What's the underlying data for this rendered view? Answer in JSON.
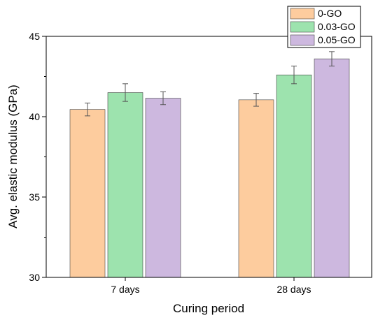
{
  "chart_data": {
    "type": "bar",
    "categories": [
      "7 days",
      "28 days"
    ],
    "series": [
      {
        "name": "0-GO",
        "values": [
          40.45,
          41.05
        ],
        "errors": [
          0.4,
          0.4
        ],
        "color": "#FDCC9E"
      },
      {
        "name": "0.03-GO",
        "values": [
          41.5,
          42.6
        ],
        "errors": [
          0.55,
          0.55
        ],
        "color": "#9DE3AE"
      },
      {
        "name": "0.05-GO",
        "values": [
          41.15,
          43.6
        ],
        "errors": [
          0.4,
          0.45
        ],
        "color": "#CDB8DF"
      }
    ],
    "xlabel": "Curing period",
    "ylabel": "Avg. elastic modulus (GPa)",
    "ylim": [
      30,
      45
    ],
    "yticks": [
      30,
      35,
      40,
      45
    ],
    "legend_position": "top-right",
    "grid": false
  }
}
